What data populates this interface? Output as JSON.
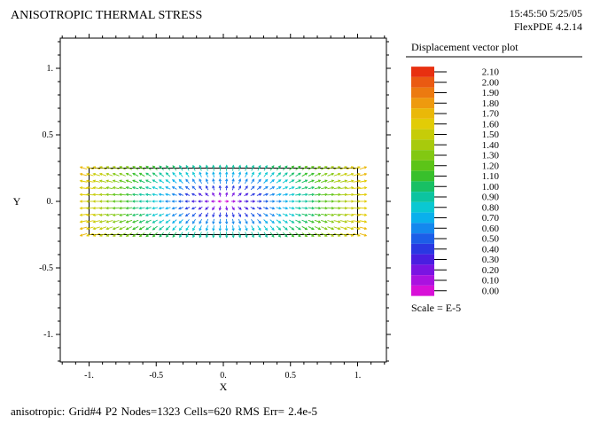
{
  "header": {
    "title": "ANISOTROPIC THERMAL STRESS",
    "timestamp": "15:45:50 5/25/05",
    "version": "FlexPDE 4.2.14"
  },
  "footer": {
    "stats": "anisotropic:  Grid#4  P2  Nodes=1323 Cells=620 RMS Err= 2.4e-5"
  },
  "legend": {
    "title": "Displacement vector plot",
    "scale": "Scale = E-5",
    "levels": [
      {
        "label": "2.10",
        "color": "#e83010"
      },
      {
        "label": "2.00",
        "color": "#ea5a12"
      },
      {
        "label": "1.90",
        "color": "#ec7a10"
      },
      {
        "label": "1.80",
        "color": "#ee9a0e"
      },
      {
        "label": "1.70",
        "color": "#eab808"
      },
      {
        "label": "1.60",
        "color": "#e2cc06"
      },
      {
        "label": "1.50",
        "color": "#c6cc08"
      },
      {
        "label": "1.40",
        "color": "#a8ca0c"
      },
      {
        "label": "1.30",
        "color": "#82c812"
      },
      {
        "label": "1.20",
        "color": "#5cc418"
      },
      {
        "label": "1.10",
        "color": "#38c02c"
      },
      {
        "label": "1.00",
        "color": "#18c064"
      },
      {
        "label": "0.90",
        "color": "#0cc4a0"
      },
      {
        "label": "0.80",
        "color": "#0ac8d2"
      },
      {
        "label": "0.70",
        "color": "#0ab0ec"
      },
      {
        "label": "0.60",
        "color": "#1488ee"
      },
      {
        "label": "0.50",
        "color": "#1c5ee8"
      },
      {
        "label": "0.40",
        "color": "#2a38e2"
      },
      {
        "label": "0.30",
        "color": "#4a1ee0"
      },
      {
        "label": "0.20",
        "color": "#7a14e2"
      },
      {
        "label": "0.10",
        "color": "#aa12e0"
      },
      {
        "label": "0.00",
        "color": "#d810d8"
      }
    ]
  },
  "chart_data": {
    "type": "vector",
    "title": "ANISOTROPIC THERMAL STRESS",
    "xlabel": "X",
    "ylabel": "Y",
    "xlim": [
      -1.2,
      1.2
    ],
    "ylim": [
      -1.2,
      1.2
    ],
    "xticks": [
      {
        "value": -1.0,
        "label": "-1."
      },
      {
        "value": -0.5,
        "label": "-0.5"
      },
      {
        "value": 0.0,
        "label": "0."
      },
      {
        "value": 0.5,
        "label": "0.5"
      },
      {
        "value": 1.0,
        "label": "1."
      }
    ],
    "yticks": [
      {
        "value": 1.0,
        "label": "1."
      },
      {
        "value": 0.5,
        "label": "0.5"
      },
      {
        "value": 0.0,
        "label": "0."
      },
      {
        "value": -0.5,
        "label": "-0.5"
      },
      {
        "value": -1.0,
        "label": "-1."
      }
    ],
    "domain": {
      "xmin": -1.0,
      "xmax": 1.0,
      "ymin": -0.25,
      "ymax": 0.25
    },
    "legend_position": "right",
    "scale": "E-5"
  }
}
